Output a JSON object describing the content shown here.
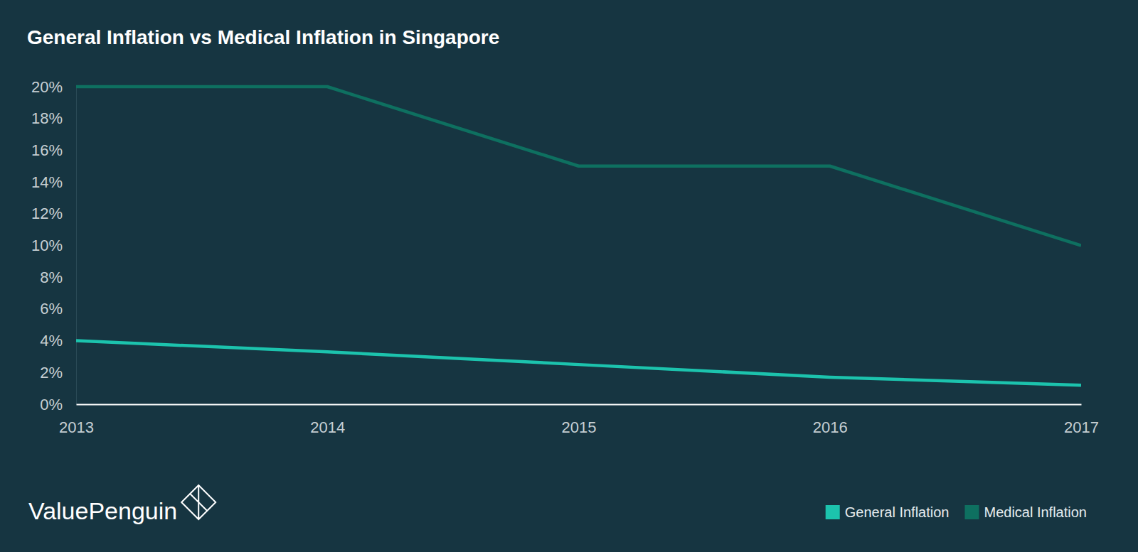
{
  "chart_data": {
    "type": "line",
    "title": "General Inflation vs Medical Inflation in Singapore",
    "source": "ValuePenguin",
    "x": [
      2013,
      2014,
      2015,
      2016,
      2017
    ],
    "series": [
      {
        "name": "General Inflation",
        "color": "#1cc3ad",
        "values": [
          4.0,
          3.3,
          2.5,
          1.7,
          1.2
        ]
      },
      {
        "name": "Medical Inflation",
        "color": "#0e7060",
        "values": [
          20,
          20,
          15,
          15,
          10
        ]
      }
    ],
    "xlim": [
      2013,
      2017
    ],
    "xticks": [
      2013,
      2014,
      2015,
      2016,
      2017
    ],
    "ylim": [
      0,
      20
    ],
    "yticks": [
      {
        "value": 0,
        "label": "0%"
      },
      {
        "value": 2,
        "label": "2%"
      },
      {
        "value": 4,
        "label": "4%"
      },
      {
        "value": 6,
        "label": "6%"
      },
      {
        "value": 8,
        "label": "8%"
      },
      {
        "value": 10,
        "label": "10%"
      },
      {
        "value": 12,
        "label": "12%"
      },
      {
        "value": 14,
        "label": "14%"
      },
      {
        "value": 16,
        "label": "16%"
      },
      {
        "value": 18,
        "label": "18%"
      },
      {
        "value": 20,
        "label": "20%"
      }
    ],
    "grid": false,
    "legend": "bottom-right"
  }
}
